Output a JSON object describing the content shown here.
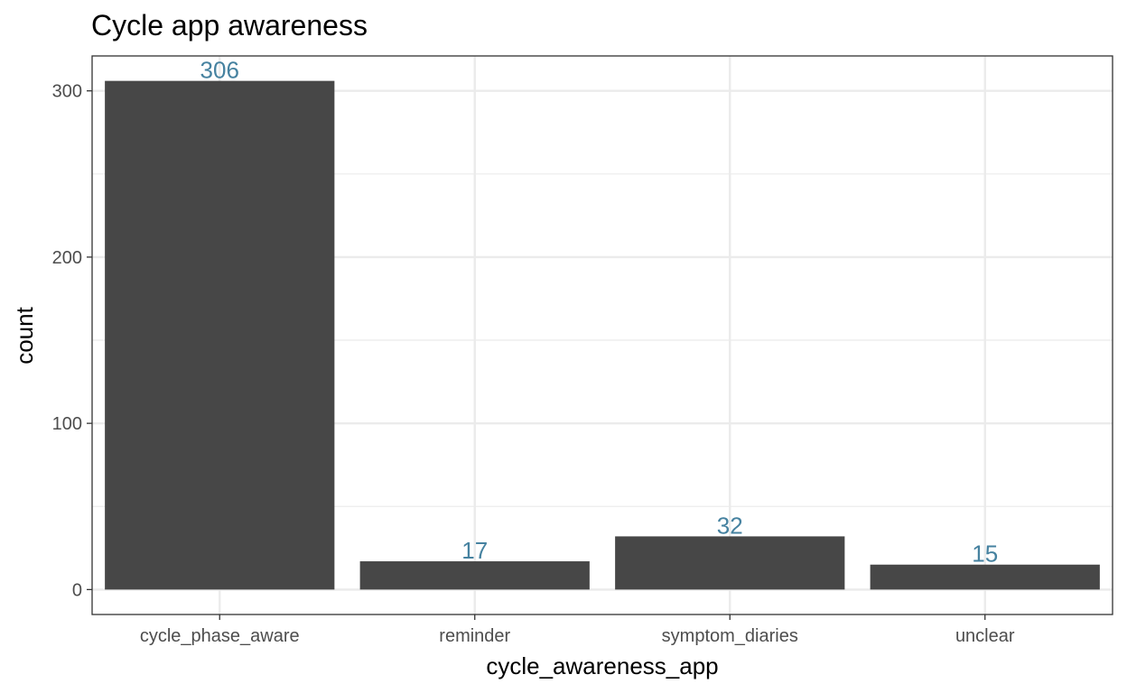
{
  "chart_data": {
    "type": "bar",
    "title": "Cycle app awareness",
    "xlabel": "cycle_awareness_app",
    "ylabel": "count",
    "categories": [
      "cycle_phase_aware",
      "reminder",
      "symptom_diaries",
      "unclear"
    ],
    "values": [
      306,
      17,
      32,
      15
    ],
    "data_labels": [
      "306",
      "17",
      "32",
      "15"
    ],
    "ylim": [
      -15,
      321
    ],
    "y_ticks": [
      0,
      100,
      200,
      300
    ],
    "y_tick_labels": [
      "0",
      "100",
      "200",
      "300"
    ],
    "y_minor_ticks": [
      50,
      150,
      250
    ],
    "grid": true,
    "legend": "none",
    "colors": {
      "bar": "#474747",
      "data_label": "#4682a0",
      "grid": "#ebebeb",
      "panel_border": "#333333",
      "tick_label": "#4d4d4d"
    }
  }
}
